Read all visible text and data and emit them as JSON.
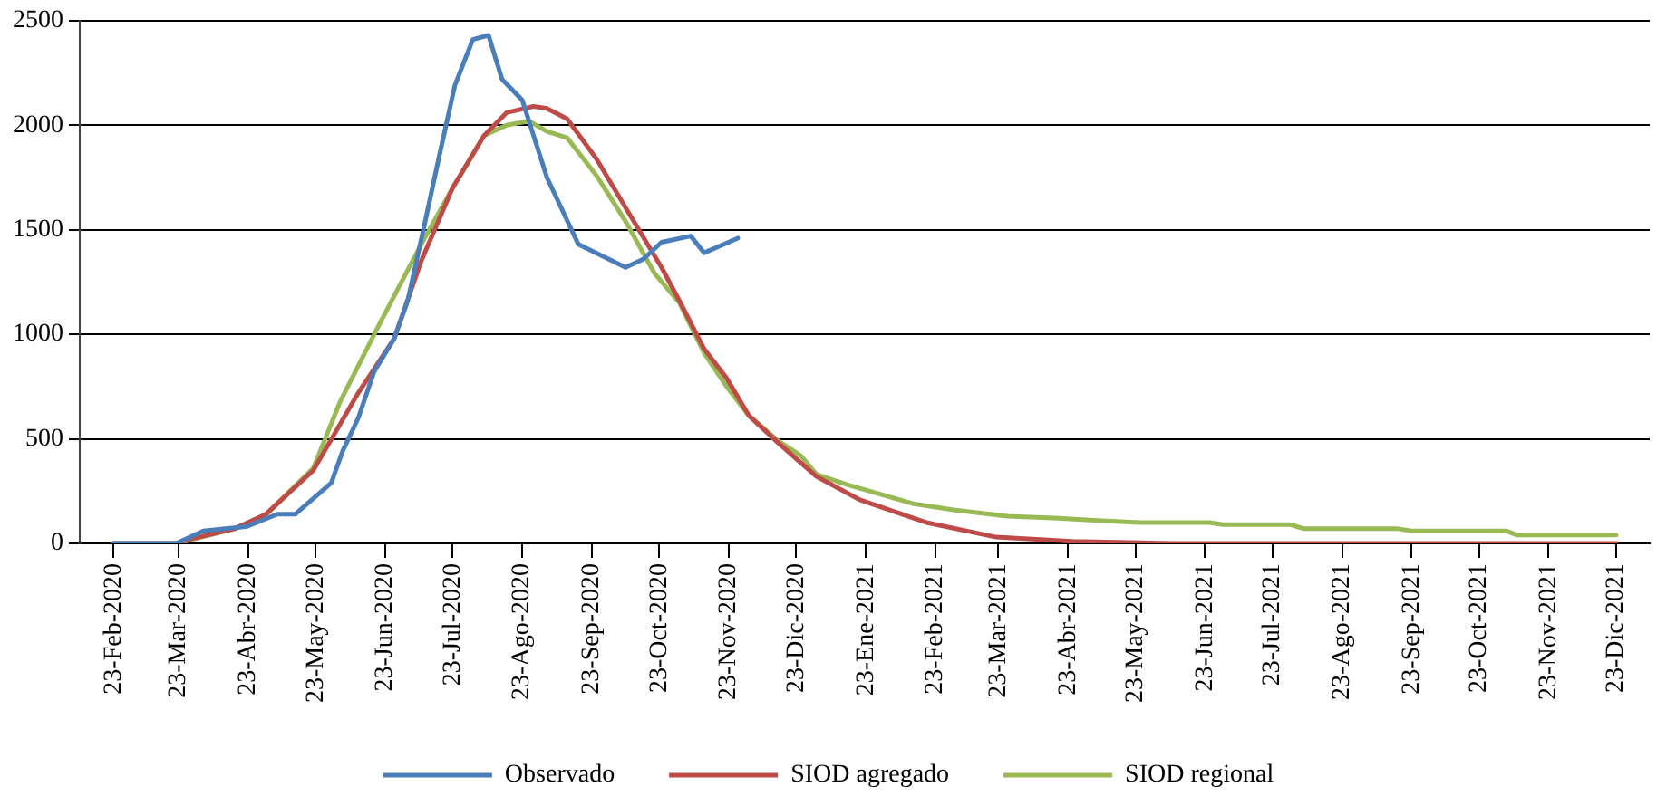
{
  "chart_data": {
    "type": "line",
    "legend": "bottom",
    "grid": "y",
    "marker": "none",
    "line_style": "solid",
    "xlim": [
      "2020-02-08",
      "2022-01-07"
    ],
    "xticks": [
      {
        "value": "2020-02-23",
        "label": "23-Feb-2020"
      },
      {
        "value": "2020-03-23",
        "label": "23-Mar-2020"
      },
      {
        "value": "2020-04-23",
        "label": "23-Abr-2020"
      },
      {
        "value": "2020-05-23",
        "label": "23-May-2020"
      },
      {
        "value": "2020-06-23",
        "label": "23-Jun-2020"
      },
      {
        "value": "2020-07-23",
        "label": "23-Jul-2020"
      },
      {
        "value": "2020-08-23",
        "label": "23-Ago-2020"
      },
      {
        "value": "2020-09-23",
        "label": "23-Sep-2020"
      },
      {
        "value": "2020-10-23",
        "label": "23-Oct-2020"
      },
      {
        "value": "2020-11-23",
        "label": "23-Nov-2020"
      },
      {
        "value": "2020-12-23",
        "label": "23-Dic-2020"
      },
      {
        "value": "2021-01-23",
        "label": "23-Ene-2021"
      },
      {
        "value": "2021-02-23",
        "label": "23-Feb-2021"
      },
      {
        "value": "2021-03-23",
        "label": "23-Mar-2021"
      },
      {
        "value": "2021-04-23",
        "label": "23-Abr-2021"
      },
      {
        "value": "2021-05-23",
        "label": "23-May-2021"
      },
      {
        "value": "2021-06-23",
        "label": "23-Jun-2021"
      },
      {
        "value": "2021-07-23",
        "label": "23-Jul-2021"
      },
      {
        "value": "2021-08-23",
        "label": "23-Ago-2021"
      },
      {
        "value": "2021-09-23",
        "label": "23-Sep-2021"
      },
      {
        "value": "2021-10-23",
        "label": "23-Oct-2021"
      },
      {
        "value": "2021-11-23",
        "label": "23-Nov-2021"
      },
      {
        "value": "2021-12-23",
        "label": "23-Dic-2021"
      }
    ],
    "ylim": [
      0,
      2500
    ],
    "yticks": [
      0,
      500,
      1000,
      1500,
      2000,
      2500
    ],
    "series": [
      {
        "name": "Observado",
        "color": "#4a7ebb",
        "x": [
          "2020-02-23",
          "2020-03-22",
          "2020-04-03",
          "2020-04-22",
          "2020-05-06",
          "2020-05-14",
          "2020-05-30",
          "2020-06-04",
          "2020-06-11",
          "2020-06-18",
          "2020-06-27",
          "2020-07-03",
          "2020-07-11",
          "2020-07-17",
          "2020-07-24",
          "2020-08-01",
          "2020-08-08",
          "2020-08-14",
          "2020-08-23",
          "2020-09-03",
          "2020-09-17",
          "2020-10-08",
          "2020-10-16",
          "2020-10-24",
          "2020-11-06",
          "2020-11-12",
          "2020-11-27"
        ],
        "values": [
          0,
          0,
          60,
          80,
          140,
          140,
          290,
          440,
          600,
          820,
          980,
          1160,
          1550,
          1850,
          2190,
          2410,
          2430,
          2220,
          2120,
          1750,
          1430,
          1320,
          1360,
          1440,
          1470,
          1390,
          1460
        ]
      },
      {
        "name": "SIOD agregado",
        "color": "#be4b48",
        "x": [
          "2020-02-23",
          "2020-03-22",
          "2020-03-28",
          "2020-04-17",
          "2020-05-01",
          "2020-05-22",
          "2020-06-11",
          "2020-06-27",
          "2020-07-09",
          "2020-07-23",
          "2020-08-06",
          "2020-08-16",
          "2020-08-28",
          "2020-09-03",
          "2020-09-12",
          "2020-09-25",
          "2020-10-10",
          "2020-10-24",
          "2020-11-01",
          "2020-11-12",
          "2020-11-22",
          "2020-12-02",
          "2020-12-15",
          "2021-01-01",
          "2021-01-20",
          "2021-02-19",
          "2021-03-22",
          "2021-04-25",
          "2021-06-08",
          "2021-12-23"
        ],
        "values": [
          0,
          0,
          20,
          70,
          140,
          350,
          720,
          980,
          1350,
          1700,
          1950,
          2060,
          2090,
          2080,
          2030,
          1840,
          1570,
          1320,
          1160,
          930,
          790,
          610,
          480,
          320,
          210,
          100,
          30,
          10,
          0,
          0
        ]
      },
      {
        "name": "SIOD regional",
        "color": "#98b954",
        "x": [
          "2020-02-23",
          "2020-03-22",
          "2020-04-17",
          "2020-05-01",
          "2020-05-22",
          "2020-06-03",
          "2020-06-20",
          "2020-07-09",
          "2020-07-23",
          "2020-08-06",
          "2020-08-16",
          "2020-08-26",
          "2020-09-03",
          "2020-09-12",
          "2020-09-25",
          "2020-10-08",
          "2020-10-21",
          "2020-11-01",
          "2020-11-12",
          "2020-11-22",
          "2020-12-02",
          "2020-12-15",
          "2020-12-25",
          "2021-01-01",
          "2021-01-15",
          "2021-02-13",
          "2021-03-03",
          "2021-03-27",
          "2021-04-19",
          "2021-05-06",
          "2021-05-25",
          "2021-06-25",
          "2021-07-01",
          "2021-07-31",
          "2021-08-06",
          "2021-09-17",
          "2021-09-23",
          "2021-11-04",
          "2021-11-09",
          "2021-12-23"
        ],
        "values": [
          0,
          0,
          70,
          140,
          360,
          680,
          1040,
          1430,
          1700,
          1950,
          2000,
          2020,
          1970,
          1940,
          1760,
          1540,
          1290,
          1150,
          910,
          750,
          610,
          490,
          420,
          330,
          280,
          190,
          160,
          130,
          120,
          110,
          100,
          100,
          90,
          90,
          70,
          70,
          60,
          60,
          40,
          40
        ]
      }
    ]
  }
}
